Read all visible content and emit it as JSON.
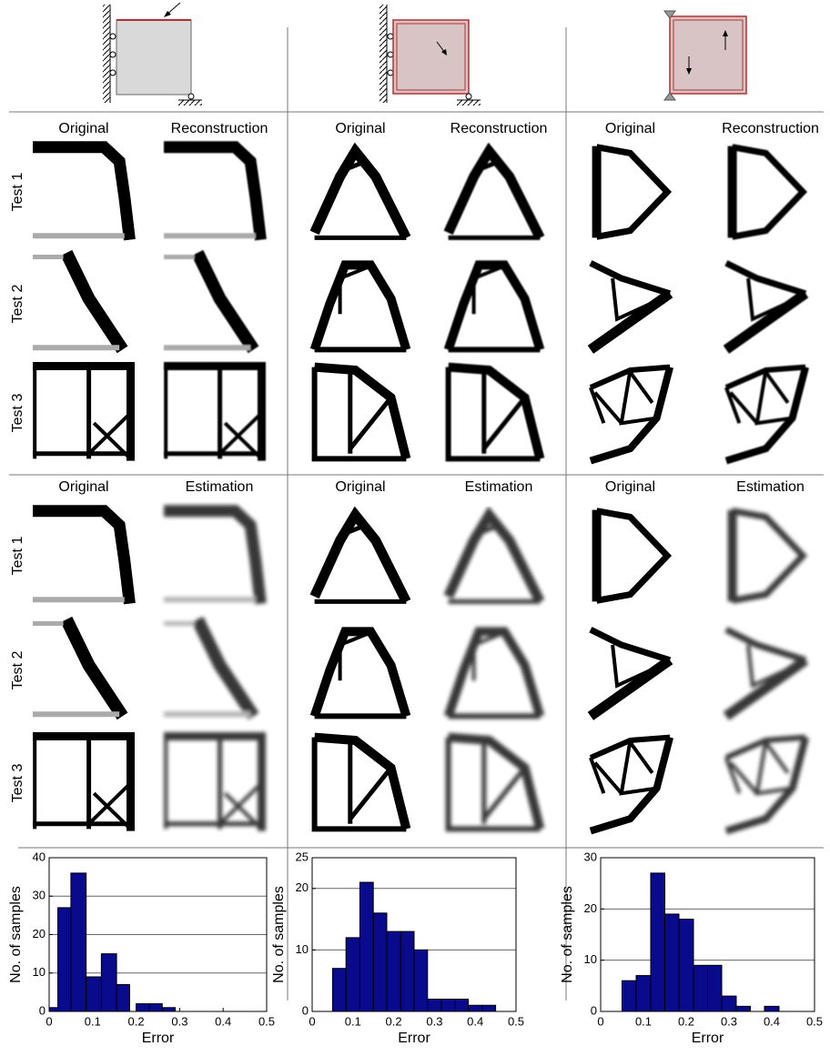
{
  "reconstruction_section": {
    "columns": [
      [
        "Original",
        "Reconstruction"
      ],
      [
        "Original",
        "Reconstruction"
      ],
      [
        "Original",
        "Reconstruction"
      ]
    ],
    "rows": [
      "Test 1",
      "Test 2",
      "Test 3"
    ]
  },
  "estimation_section": {
    "columns": [
      [
        "Original",
        "Estimation"
      ],
      [
        "Original",
        "Estimation"
      ],
      [
        "Original",
        "Estimation"
      ]
    ],
    "rows": [
      "Test 1",
      "Test 2",
      "Test 3"
    ]
  },
  "chart_data": [
    {
      "type": "histogram",
      "x_label": "Error",
      "y_label": "No. of samples",
      "color": "#0a0a8c",
      "bins": [
        0,
        0.02,
        0.05,
        0.085,
        0.12,
        0.155,
        0.185,
        0.2,
        0.23,
        0.26,
        0.29
      ],
      "values": [
        1,
        27,
        36,
        9,
        15,
        7,
        0,
        2,
        2,
        1
      ],
      "xlim": [
        0,
        0.5
      ],
      "ylim": [
        0,
        40
      ],
      "xticks": [
        0,
        0.1,
        0.2,
        0.3,
        0.4,
        0.5
      ],
      "yticks": [
        0,
        10,
        20,
        30,
        40
      ],
      "grid": true
    },
    {
      "type": "histogram",
      "x_label": "Error",
      "y_label": "No. of samples",
      "color": "#0a0a8c",
      "bins": [
        0.05,
        0.083,
        0.117,
        0.15,
        0.183,
        0.217,
        0.25,
        0.283,
        0.317,
        0.35,
        0.383,
        0.417,
        0.45
      ],
      "values": [
        7,
        12,
        21,
        16,
        13,
        13,
        10,
        2,
        2,
        2,
        1,
        1
      ],
      "xlim": [
        0,
        0.5
      ],
      "ylim": [
        0,
        25
      ],
      "xticks": [
        0,
        0.1,
        0.2,
        0.3,
        0.4,
        0.5
      ],
      "yticks": [
        0,
        10,
        20,
        25
      ],
      "grid": true
    },
    {
      "type": "histogram",
      "x_label": "Error",
      "y_label": "No. of samples",
      "color": "#0a0a8c",
      "bins": [
        0.05,
        0.083,
        0.117,
        0.15,
        0.183,
        0.217,
        0.25,
        0.283,
        0.317,
        0.35,
        0.383,
        0.417
      ],
      "values": [
        6,
        7,
        27,
        19,
        18,
        9,
        9,
        3,
        1,
        0,
        1
      ],
      "xlim": [
        0,
        0.5
      ],
      "ylim": [
        0,
        30
      ],
      "xticks": [
        0,
        0.1,
        0.2,
        0.3,
        0.4,
        0.5
      ],
      "yticks": [
        0,
        10,
        20,
        30
      ],
      "grid": true
    }
  ]
}
